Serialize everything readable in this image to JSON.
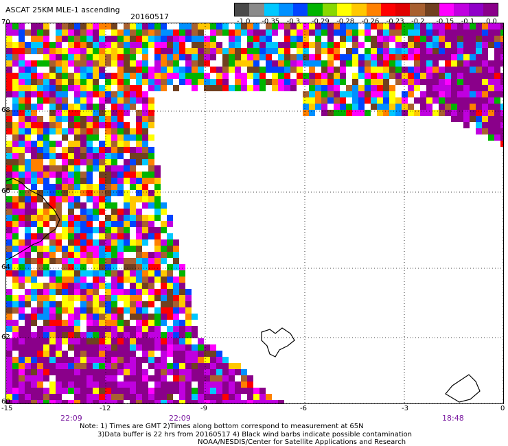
{
  "header": {
    "title": "ASCAT 25KM MLE-1 ascending",
    "date": "20160517"
  },
  "legend": {
    "colors": [
      "#4a4a4a",
      "#8a8a8a",
      "#00c8ff",
      "#0090ff",
      "#0044ff",
      "#00b400",
      "#88d800",
      "#ffff00",
      "#ffc800",
      "#ff8000",
      "#ff0000",
      "#e00000",
      "#a86030",
      "#704020",
      "#ff00ff",
      "#c000e0",
      "#9000c8",
      "#8a008a"
    ],
    "labels": [
      "-1.0",
      "-0.35",
      "-0.3",
      "-0.29",
      "-0.28",
      "-0.26",
      "-0.23",
      "-0.2",
      "-0.15",
      "-0.1",
      "0.0"
    ]
  },
  "axes": {
    "lat_labels": [
      "70",
      "68",
      "66",
      "64",
      "62",
      "60"
    ],
    "lon_labels": [
      "-15",
      "-12",
      "-9",
      "-6",
      "-3",
      "0"
    ]
  },
  "times": [
    "22:09",
    "22:09",
    "18:48"
  ],
  "notes": {
    "line1": "Note: 1) Times are GMT 2)Times along bottom correspond to measurement at 65N",
    "line2": "3)Data buffer is 22 hrs from 20160517 4) Black wind barbs indicate possible contamination",
    "line3": "NOAA/NESDIS/Center for Satellite Applications and Research"
  }
}
